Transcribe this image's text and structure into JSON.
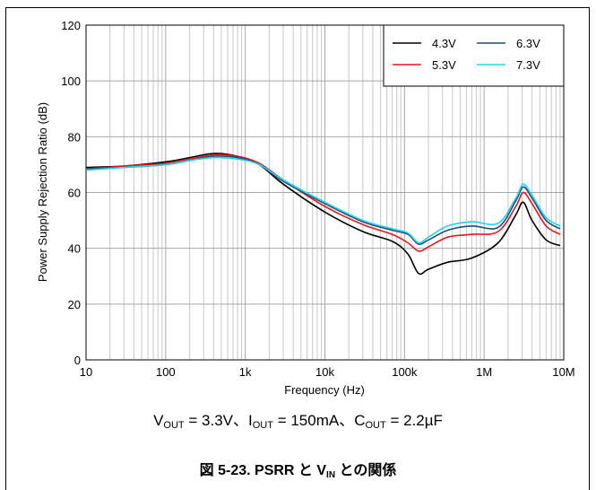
{
  "chart_data": {
    "type": "line",
    "xlabel": "Frequency (Hz)",
    "ylabel": "Power Supply Rejection Ratio (dB)",
    "x_scale": "log",
    "xlim": [
      10,
      10000000
    ],
    "ylim": [
      0,
      120
    ],
    "grid": true,
    "legend_position": "top-right",
    "x_tick_labels": [
      "10",
      "100",
      "1k",
      "10k",
      "100k",
      "1M",
      "10M"
    ],
    "y_tick_labels": [
      "0",
      "20",
      "40",
      "60",
      "80",
      "100",
      "120"
    ],
    "series": [
      {
        "name": "4.3V",
        "color": "#000000",
        "x": [
          10,
          30,
          100,
          200,
          400,
          800,
          1500,
          3000,
          10000,
          30000,
          70000,
          110000,
          150000,
          200000,
          350000,
          700000,
          1500000,
          2500000,
          3100000,
          4000000,
          6000000,
          9000000
        ],
        "y": [
          69,
          69.5,
          71,
          72.5,
          74,
          73,
          70,
          63,
          53,
          46,
          42.5,
          38,
          31,
          32.5,
          35,
          36.5,
          42,
          52,
          56.5,
          50,
          43,
          41
        ]
      },
      {
        "name": "5.3V",
        "color": "#e31a1c",
        "x": [
          10,
          30,
          100,
          200,
          400,
          800,
          1500,
          3000,
          10000,
          30000,
          70000,
          110000,
          150000,
          200000,
          350000,
          700000,
          1500000,
          2500000,
          3100000,
          4000000,
          6000000,
          9000000
        ],
        "y": [
          68.5,
          69.5,
          70.5,
          72,
          73.5,
          73,
          70.5,
          64.5,
          55,
          48.5,
          45,
          42,
          39,
          40.5,
          44,
          45,
          46,
          55,
          60,
          56,
          48,
          45
        ]
      },
      {
        "name": "6.3V",
        "color": "#1f4e79",
        "x": [
          10,
          30,
          100,
          200,
          400,
          800,
          1500,
          3000,
          10000,
          30000,
          70000,
          110000,
          150000,
          200000,
          350000,
          700000,
          1500000,
          2500000,
          3100000,
          4000000,
          6000000,
          9000000
        ],
        "y": [
          68.5,
          69,
          70,
          71.5,
          73,
          72.5,
          70,
          64,
          56,
          49.5,
          46.5,
          45,
          41.5,
          43,
          46.5,
          48,
          47.5,
          57,
          62,
          58,
          50,
          47
        ]
      },
      {
        "name": "7.3V",
        "color": "#22d3ee",
        "x": [
          10,
          30,
          100,
          200,
          400,
          800,
          1500,
          3000,
          10000,
          30000,
          70000,
          110000,
          150000,
          200000,
          350000,
          700000,
          1500000,
          2500000,
          3100000,
          4000000,
          6000000,
          9000000
        ],
        "y": [
          68,
          69,
          70,
          71.5,
          72.5,
          72,
          70,
          64.5,
          56.5,
          50,
          47,
          45.5,
          42,
          44,
          48,
          49.5,
          49,
          58,
          63,
          59,
          51,
          48
        ]
      }
    ]
  },
  "conditions": {
    "v_main": "V",
    "v_sub": "OUT",
    "v_val": " = 3.3V、",
    "i_main": "I",
    "i_sub": "OUT",
    "i_val": " = 150mA、",
    "c_main": "C",
    "c_sub": "OUT",
    "c_val": " = 2.2µF"
  },
  "caption": {
    "prefix": "図 5-23. PSRR と V",
    "sub": "IN",
    "suffix": " との関係"
  }
}
